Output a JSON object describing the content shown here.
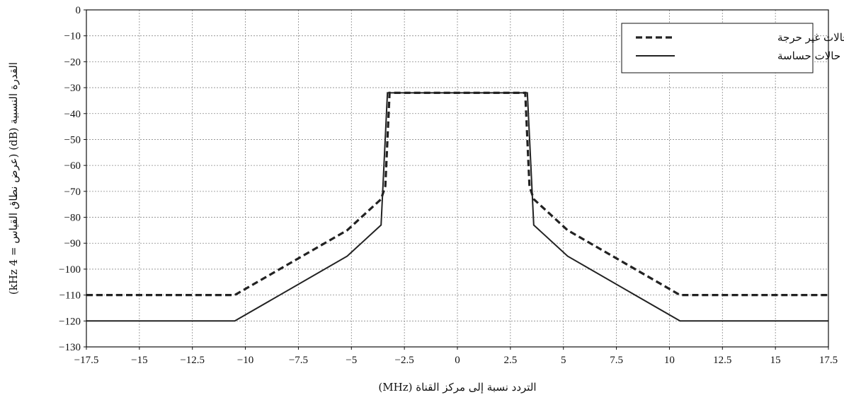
{
  "chart_data": {
    "type": "line",
    "title": "",
    "xlabel": "التردد نسبة إلى مركز القناة (MHz)",
    "ylabel": "القدرة النسبية (dB) (عرض نطاق القياس = 4 kHz)",
    "xlim": [
      -17.5,
      17.5
    ],
    "ylim": [
      -130,
      0
    ],
    "xticks": [
      -17.5,
      -15,
      -12.5,
      -10,
      -7.5,
      -5,
      -2.5,
      0,
      2.5,
      5,
      7.5,
      10,
      12.5,
      15,
      17.5
    ],
    "yticks": [
      0,
      -10,
      -20,
      -30,
      -40,
      -50,
      -60,
      -70,
      -80,
      -90,
      -100,
      -110,
      -120,
      -130
    ],
    "xtick_labels": [
      "−17.5",
      "−15",
      "−12.5",
      "−10",
      "−7.5",
      "−5",
      "−2.5",
      "0",
      "2.5",
      "5",
      "7.5",
      "10",
      "12.5",
      "15",
      "17.5"
    ],
    "ytick_labels": [
      "0",
      "−10",
      "−20",
      "−30",
      "−40",
      "−50",
      "−60",
      "−70",
      "−80",
      "−90",
      "−100",
      "−110",
      "−120",
      "−130"
    ],
    "grid": true,
    "legend_position": "top-right",
    "series": [
      {
        "name": "حالات غير حرجة",
        "style": "dashed",
        "color": "#222222",
        "x": [
          -17.5,
          -10.5,
          -5.2,
          -3.6,
          -3.4,
          -3.2,
          3.2,
          3.4,
          3.6,
          5.2,
          10.5,
          17.5
        ],
        "y": [
          -110,
          -110,
          -85,
          -73,
          -68,
          -32,
          -32,
          -68,
          -73,
          -85,
          -110,
          -110
        ]
      },
      {
        "name": "حالات حساسة",
        "style": "solid",
        "color": "#222222",
        "x": [
          -17.5,
          -10.5,
          -5.2,
          -3.6,
          -3.3,
          3.3,
          3.6,
          5.2,
          10.5,
          17.5
        ],
        "y": [
          -120,
          -120,
          -95,
          -83,
          -32,
          -32,
          -83,
          -95,
          -120,
          -120
        ]
      }
    ]
  }
}
